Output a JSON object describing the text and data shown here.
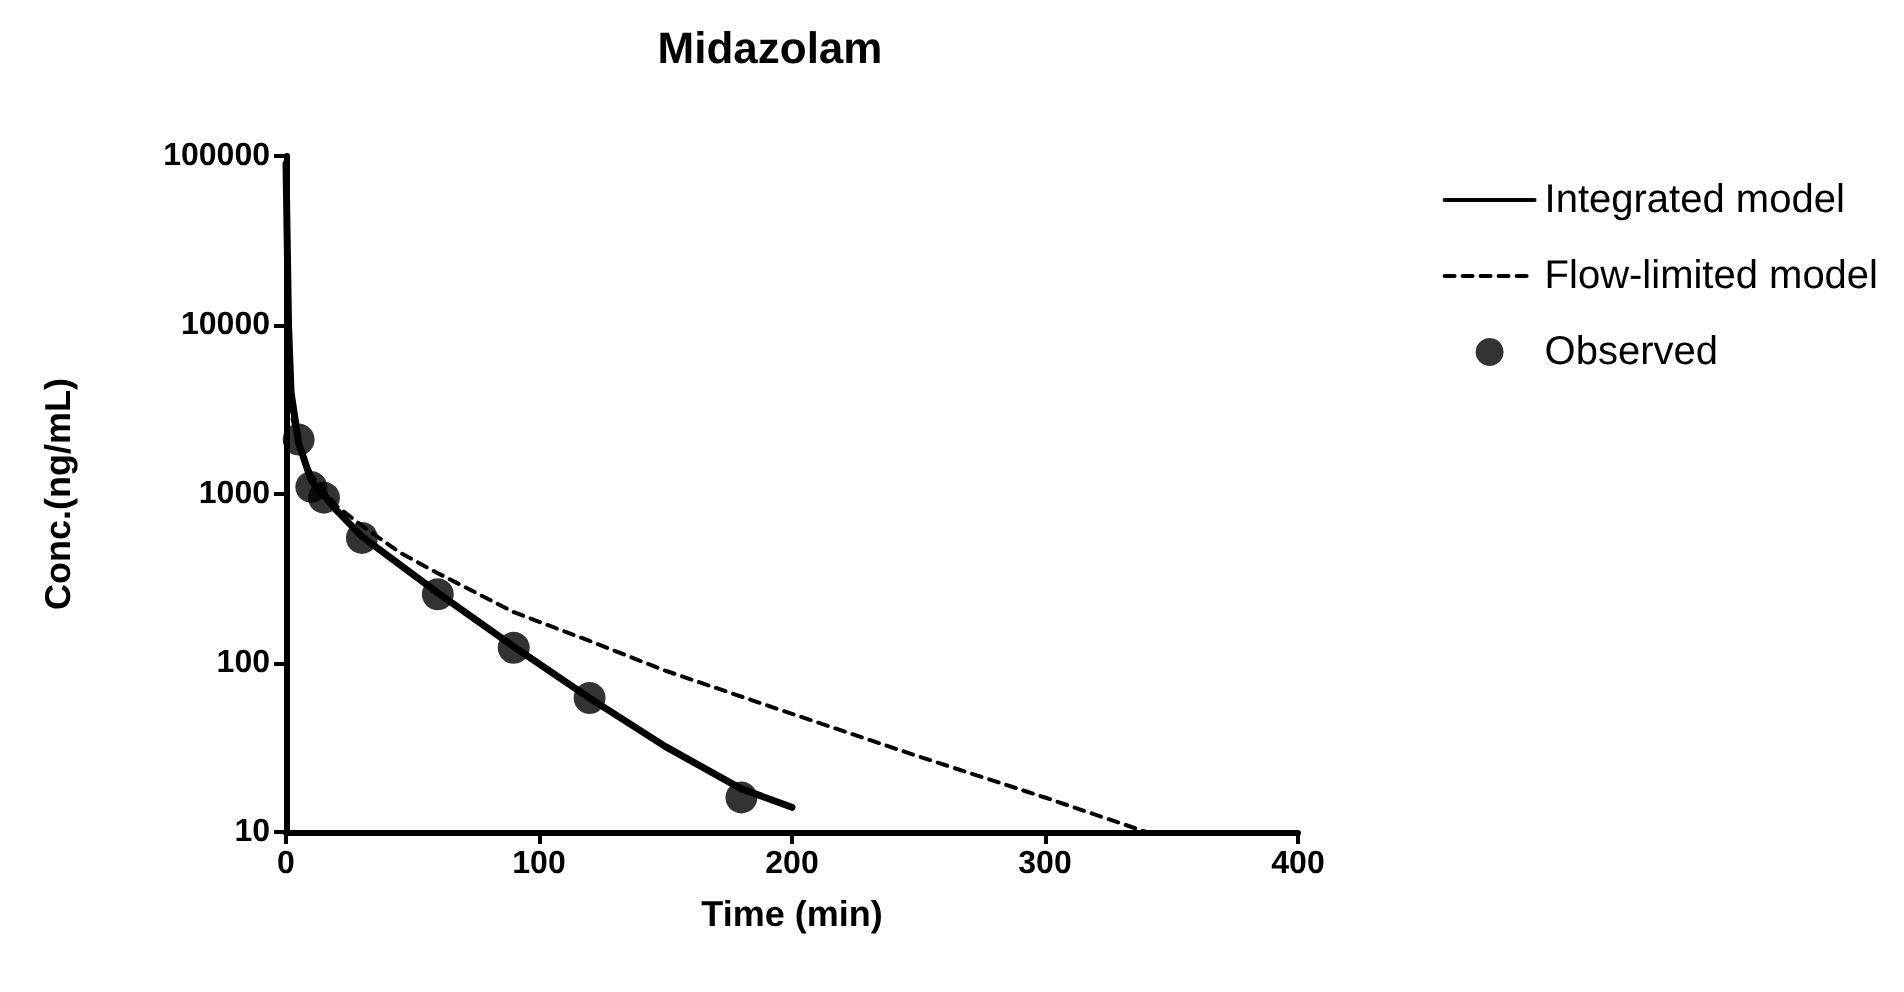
{
  "chart_data": {
    "type": "line",
    "title": "Midazolam",
    "xlabel": "Time (min)",
    "ylabel": "Conc.(ng/mL)",
    "log": "y",
    "legend": "right",
    "xlim": [
      0,
      400
    ],
    "xticks": [
      0,
      100,
      200,
      300,
      400
    ],
    "ylim": [
      10,
      100000
    ],
    "yticks": [
      10,
      100,
      1000,
      10000,
      100000
    ],
    "series": [
      {
        "name": "Integrated model",
        "color": "#000000",
        "marker": "none",
        "line_style": "solid",
        "x": [
          0,
          1,
          2,
          5,
          10,
          20,
          30,
          60,
          90,
          120,
          150,
          180,
          200
        ],
        "values": [
          90000,
          10000,
          4000,
          2000,
          1200,
          800,
          560,
          260,
          125,
          62,
          32,
          18,
          14
        ]
      },
      {
        "name": "Flow-limited model",
        "color": "#000000",
        "marker": "none",
        "line_style": "dashed",
        "x": [
          0,
          2,
          5,
          10,
          20,
          30,
          45,
          60,
          90,
          120,
          150,
          200,
          250,
          300,
          340
        ],
        "values": [
          12000,
          3000,
          2000,
          1300,
          850,
          650,
          450,
          340,
          200,
          135,
          90,
          50,
          28,
          16,
          10
        ]
      },
      {
        "name": "Observed",
        "type": "scatter",
        "color": "#000000",
        "marker": "circle",
        "x": [
          5,
          10,
          15,
          30,
          60,
          90,
          120,
          180
        ],
        "values": [
          2100,
          1100,
          950,
          550,
          255,
          123,
          62,
          16
        ]
      }
    ]
  }
}
